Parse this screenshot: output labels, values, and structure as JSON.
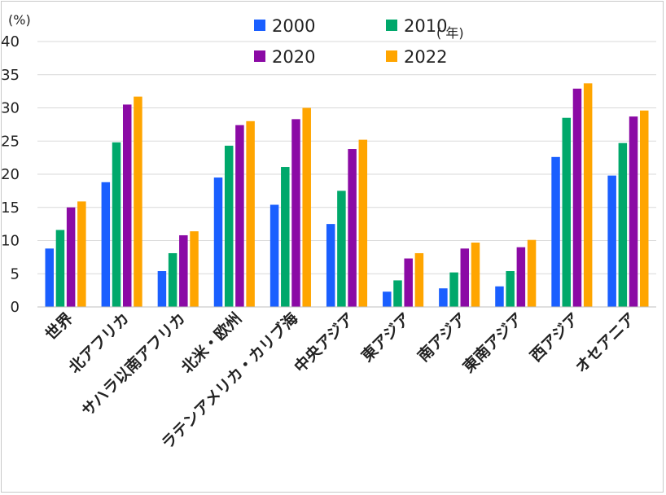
{
  "chart_data": {
    "type": "bar",
    "unit_label": "(%)",
    "ylim": [
      0,
      40
    ],
    "yticks": [
      0,
      5,
      10,
      15,
      20,
      25,
      30,
      35,
      40
    ],
    "grid": true,
    "legend_position": "top",
    "categories": [
      "世界",
      "北アフリカ",
      "サハラ以南アフリカ",
      "北米・欧州",
      "ラテンアメリカ・カリブ海",
      "中央アジア",
      "東アジア",
      "南アジア",
      "東南アジア",
      "西アジア",
      "オセアニア"
    ],
    "series": [
      {
        "name": "2000",
        "color": "#1a5fff",
        "values": [
          8.8,
          18.8,
          5.4,
          19.5,
          15.4,
          12.5,
          2.3,
          2.8,
          3.1,
          22.6,
          19.8
        ]
      },
      {
        "name": "2010",
        "color": "#00a86b",
        "values": [
          11.6,
          24.8,
          8.1,
          24.3,
          21.1,
          17.5,
          4.0,
          5.2,
          5.4,
          28.5,
          24.7
        ]
      },
      {
        "name": "2020",
        "color": "#8b0aa5",
        "values": [
          15.0,
          30.5,
          10.8,
          27.4,
          28.3,
          23.8,
          7.3,
          8.8,
          9.0,
          32.9,
          28.7
        ]
      },
      {
        "name": "2022",
        "color": "#ffa500",
        "values": [
          15.9,
          31.7,
          11.4,
          28.0,
          30.0,
          25.2,
          8.1,
          9.7,
          10.1,
          33.7,
          29.6
        ]
      }
    ],
    "legend_suffix": "( 年)"
  }
}
